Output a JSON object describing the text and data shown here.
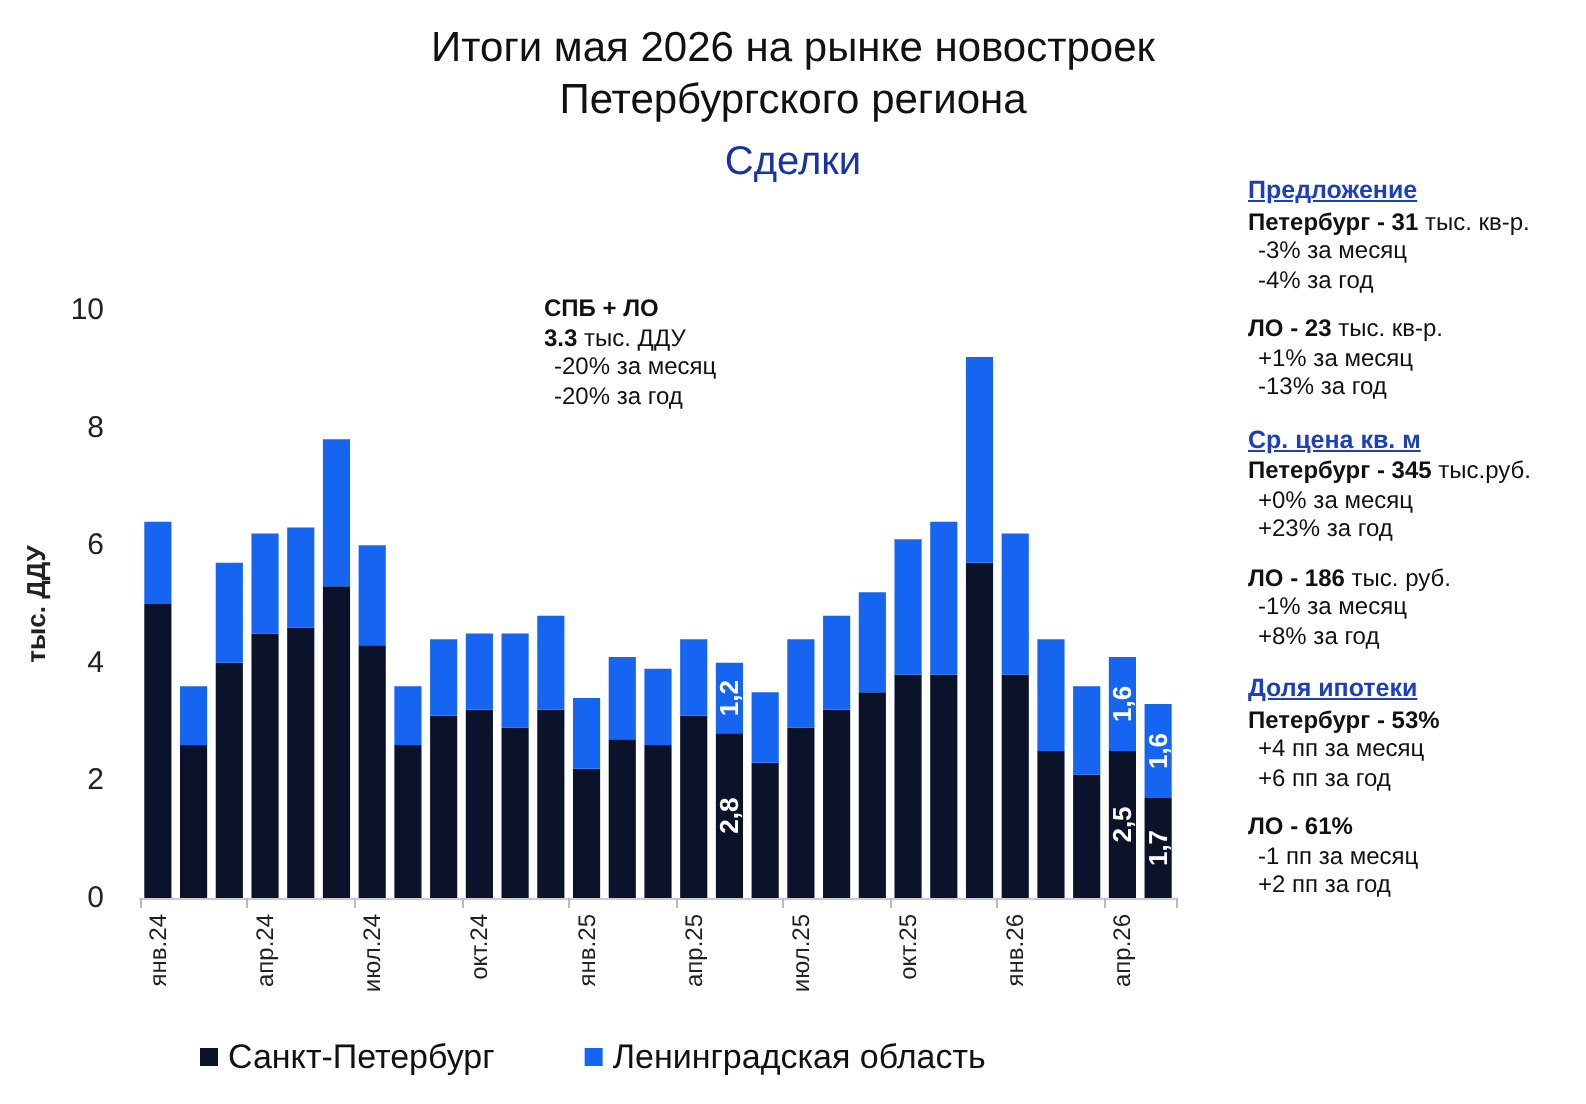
{
  "chart_data": [
    {
      "type": "bar",
      "title": "Итоги мая 2026 на рынке новостроек\nПетербургского региона",
      "subtitle": "Сделки",
      "ylabel": "тыс. ДДУ",
      "categories": [
        "янв.24",
        null,
        null,
        "апр.24",
        null,
        null,
        "июл.24",
        null,
        null,
        "окт.24",
        null,
        null,
        "янв.25",
        null,
        null,
        "апр.25",
        null,
        null,
        "июл.25",
        null,
        null,
        "окт.25",
        null,
        null,
        "янв.26",
        null,
        null,
        "апр.26",
        null
      ],
      "series": [
        {
          "name": "Санкт-Петербург",
          "color": "#0b132b",
          "values": [
            5.0,
            2.6,
            4.0,
            4.5,
            4.6,
            5.3,
            4.3,
            2.6,
            3.1,
            3.2,
            2.9,
            3.2,
            2.2,
            2.7,
            2.6,
            3.1,
            2.8,
            2.3,
            2.9,
            3.2,
            3.5,
            3.8,
            3.8,
            5.7,
            3.8,
            2.5,
            2.1,
            2.5,
            1.7
          ],
          "value_labels": [
            null,
            null,
            null,
            null,
            null,
            null,
            null,
            null,
            null,
            null,
            null,
            null,
            null,
            null,
            null,
            null,
            "2,8",
            null,
            null,
            null,
            null,
            null,
            null,
            null,
            null,
            null,
            null,
            "2,5",
            "1,7"
          ]
        },
        {
          "name": "Ленинградская область",
          "color": "#1565f0",
          "values": [
            1.4,
            1.0,
            1.7,
            1.7,
            1.7,
            2.5,
            1.7,
            1.0,
            1.3,
            1.3,
            1.6,
            1.6,
            1.2,
            1.4,
            1.3,
            1.3,
            1.2,
            1.2,
            1.5,
            1.6,
            1.7,
            2.3,
            2.6,
            3.5,
            2.4,
            1.9,
            1.5,
            1.6,
            1.6
          ],
          "value_labels": [
            null,
            null,
            null,
            null,
            null,
            null,
            null,
            null,
            null,
            null,
            null,
            null,
            null,
            null,
            null,
            null,
            "1,2",
            null,
            null,
            null,
            null,
            null,
            null,
            null,
            null,
            null,
            null,
            "1,6",
            "1,6"
          ]
        }
      ],
      "stacked": true,
      "ylim": [
        0,
        10
      ],
      "yticks": [
        0,
        2,
        4,
        6,
        8,
        10
      ],
      "legend": "bottom",
      "annotations": [
        "СПБ + ЛО\n3.3 тыс. ДДУ\n-20% за месяц\n-20% за год"
      ]
    },
    {
      "type": "other",
      "annotations": [
        "Предложение",
        "Петербург - 31 тыс. кв-р.\n-3% за месяц\n-4% за год",
        "ЛО - 23 тыс. кв-р.\n+1% за месяц\n-13% за год",
        "Ср. цена кв. м",
        "Петербург - 345 тыс.руб.\n+0% за месяц\n+23% за год",
        "ЛО - 186 тыс. руб.\n-1% за месяц\n+8% за год",
        "Доля ипотеки",
        "Петербург - 53%\n+4 пп за месяц\n+6 пп за год",
        "ЛО - 61%\n-1 пп за месяц\n+2 пп за год"
      ]
    }
  ]
}
